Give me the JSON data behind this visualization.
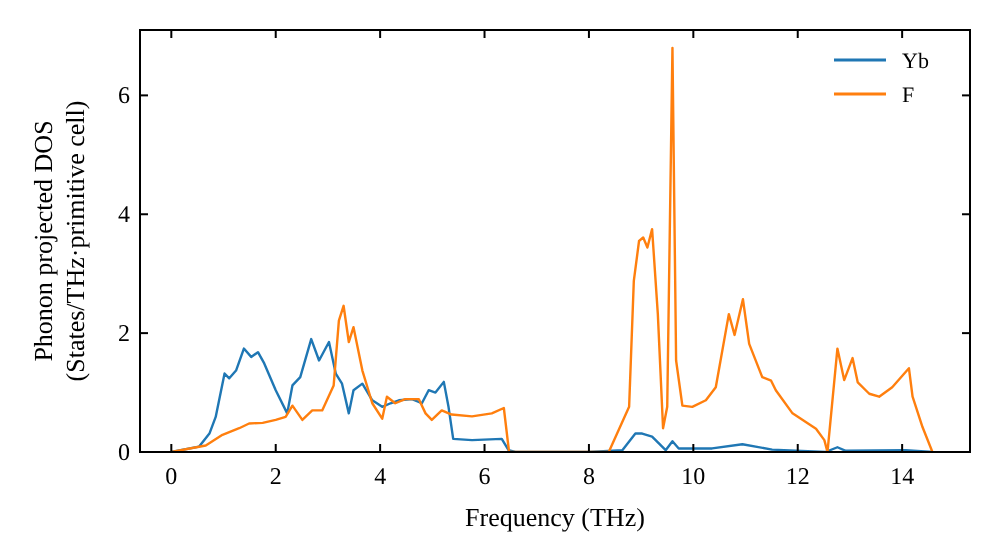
{
  "chart_data": {
    "type": "line",
    "xlabel": "Frequency (THz)",
    "ylabel": "Phonon projected DOS\n(States/THz·primitive cell)",
    "xlim": [
      -0.6,
      15.3
    ],
    "ylim": [
      0,
      7.1
    ],
    "xticks": [
      0,
      2,
      4,
      6,
      8,
      10,
      12,
      14
    ],
    "yticks": [
      0,
      2,
      4,
      6
    ],
    "grid": false,
    "legend": "top right",
    "marker": "none",
    "line_style": "solid",
    "series": [
      {
        "name": "Yb",
        "color": "#1f77b4",
        "x": [
          0,
          0.53,
          0.73,
          0.85,
          1.02,
          1.11,
          1.24,
          1.39,
          1.53,
          1.66,
          1.78,
          2.0,
          2.22,
          2.32,
          2.47,
          2.68,
          2.83,
          3.02,
          3.15,
          3.27,
          3.4,
          3.49,
          3.66,
          3.85,
          4.04,
          4.2,
          4.36,
          4.61,
          4.8,
          4.93,
          5.06,
          5.22,
          5.31,
          5.4,
          5.76,
          6.33,
          6.46,
          6.59,
          8.0,
          8.64,
          8.89,
          9.02,
          9.21,
          9.47,
          9.6,
          9.72,
          10.36,
          10.94,
          11.51,
          12.53,
          12.76,
          12.92,
          14.07,
          14.58
        ],
        "values": [
          0,
          0.09,
          0.31,
          0.59,
          1.32,
          1.24,
          1.37,
          1.74,
          1.6,
          1.68,
          1.49,
          1.04,
          0.65,
          1.12,
          1.26,
          1.9,
          1.54,
          1.85,
          1.32,
          1.15,
          0.65,
          1.04,
          1.15,
          0.87,
          0.76,
          0.82,
          0.87,
          0.89,
          0.82,
          1.04,
          1.0,
          1.18,
          0.76,
          0.22,
          0.2,
          0.22,
          0.03,
          0,
          0,
          0.03,
          0.31,
          0.31,
          0.26,
          0.03,
          0.18,
          0.06,
          0.06,
          0.13,
          0.04,
          0,
          0.08,
          0.02,
          0.03,
          0
        ]
      },
      {
        "name": "F",
        "color": "#ff7f0e",
        "x": [
          0,
          0.66,
          0.98,
          1.3,
          1.49,
          1.75,
          2.0,
          2.19,
          2.32,
          2.51,
          2.7,
          2.89,
          3.11,
          3.21,
          3.3,
          3.4,
          3.49,
          3.66,
          3.85,
          4.04,
          4.13,
          4.29,
          4.48,
          4.74,
          4.87,
          4.99,
          5.18,
          5.37,
          5.76,
          6.14,
          6.37,
          6.47,
          8.38,
          8.77,
          8.86,
          8.96,
          9.04,
          9.12,
          9.21,
          9.32,
          9.42,
          9.5,
          9.6,
          9.67,
          9.79,
          9.98,
          10.24,
          10.43,
          10.68,
          10.79,
          10.95,
          11.07,
          11.32,
          11.49,
          11.58,
          11.9,
          12.35,
          12.51,
          12.57,
          12.76,
          12.89,
          13.05,
          13.15,
          13.37,
          13.56,
          13.81,
          14.13,
          14.2,
          14.39,
          14.58
        ],
        "values": [
          0,
          0.11,
          0.29,
          0.4,
          0.48,
          0.49,
          0.54,
          0.59,
          0.78,
          0.54,
          0.7,
          0.7,
          1.12,
          2.21,
          2.46,
          1.85,
          2.1,
          1.37,
          0.82,
          0.56,
          0.93,
          0.82,
          0.89,
          0.89,
          0.65,
          0.54,
          0.7,
          0.63,
          0.6,
          0.65,
          0.74,
          0,
          0,
          0.76,
          2.88,
          3.55,
          3.61,
          3.44,
          3.75,
          2.32,
          0.4,
          0.76,
          6.8,
          1.54,
          0.78,
          0.76,
          0.87,
          1.09,
          2.32,
          1.97,
          2.57,
          1.82,
          1.26,
          1.2,
          1.04,
          0.65,
          0.39,
          0.2,
          0,
          1.74,
          1.21,
          1.58,
          1.17,
          0.98,
          0.93,
          1.09,
          1.41,
          0.93,
          0.42,
          0
        ]
      }
    ]
  }
}
